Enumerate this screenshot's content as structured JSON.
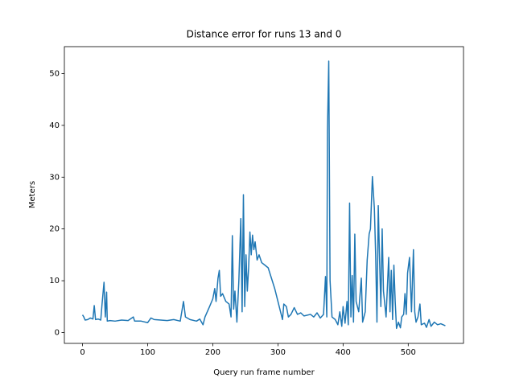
{
  "chart_data": {
    "type": "line",
    "title": "Distance error for runs 13 and 0",
    "x_label": "Query run frame number",
    "y_label": "Meters",
    "xlim": [
      -27.85,
      584.85
    ],
    "ylim": [
      -2.1,
      55.2
    ],
    "xticks": [
      0,
      100,
      200,
      300,
      400,
      500
    ],
    "yticks": [
      0,
      10,
      20,
      30,
      40,
      50
    ],
    "grid": false,
    "x": [
      0,
      2,
      4,
      8,
      12,
      16,
      18,
      20,
      24,
      28,
      30,
      33,
      35,
      37,
      38,
      42,
      50,
      60,
      70,
      78,
      80,
      90,
      100,
      105,
      110,
      120,
      130,
      140,
      150,
      155,
      158,
      165,
      175,
      180,
      185,
      188,
      195,
      200,
      203,
      205,
      208,
      210,
      212,
      215,
      220,
      225,
      228,
      230,
      232,
      234,
      237,
      240,
      243,
      245,
      247,
      249,
      251,
      253,
      255,
      257,
      259,
      261,
      263,
      265,
      268,
      271,
      275,
      280,
      285,
      290,
      295,
      300,
      305,
      307,
      309,
      313,
      316,
      320,
      325,
      330,
      335,
      340,
      350,
      355,
      360,
      365,
      370,
      373,
      375,
      376,
      378,
      380,
      383,
      388,
      392,
      395,
      398,
      400,
      403,
      406,
      408,
      410,
      412,
      414,
      416,
      418,
      420,
      424,
      428,
      430,
      434,
      437,
      440,
      442,
      445,
      448,
      450,
      452,
      454,
      456,
      458,
      460,
      462,
      466,
      470,
      472,
      474,
      476,
      478,
      480,
      482,
      485,
      488,
      490,
      493,
      495,
      497,
      499,
      502,
      505,
      508,
      510,
      512,
      515,
      518,
      520,
      525,
      528,
      532,
      535,
      540,
      545,
      550,
      557
    ],
    "series": [
      {
        "name": "distance-error",
        "color": "#1f77b4",
        "values": [
          3.4,
          3.0,
          2.4,
          2.5,
          2.8,
          2.6,
          5.2,
          2.5,
          2.6,
          2.4,
          5.5,
          9.7,
          3.0,
          7.8,
          2.2,
          2.3,
          2.2,
          2.4,
          2.3,
          3.0,
          2.2,
          2.2,
          1.9,
          2.8,
          2.5,
          2.4,
          2.3,
          2.5,
          2.2,
          6.0,
          3.0,
          2.5,
          2.2,
          2.6,
          1.5,
          3.0,
          5.0,
          6.5,
          8.5,
          6.0,
          10.5,
          12.0,
          7.0,
          7.5,
          6.0,
          5.5,
          3.0,
          18.7,
          4.5,
          8.0,
          2.0,
          10.0,
          22.0,
          4.0,
          26.6,
          5.0,
          15.0,
          8.0,
          12.5,
          19.4,
          15.0,
          18.8,
          16.0,
          17.5,
          14.0,
          15.0,
          13.5,
          13.0,
          12.5,
          10.5,
          8.5,
          6.0,
          3.5,
          2.5,
          5.5,
          5.0,
          3.0,
          3.5,
          4.8,
          3.5,
          3.8,
          3.2,
          3.5,
          3.0,
          3.8,
          2.8,
          3.5,
          10.8,
          3.0,
          39.0,
          52.4,
          10.0,
          3.0,
          2.5,
          1.5,
          4.0,
          1.2,
          5.0,
          1.8,
          6.0,
          1.5,
          25.0,
          3.0,
          11.0,
          2.0,
          19.0,
          6.0,
          4.0,
          10.5,
          2.0,
          4.0,
          14.0,
          19.0,
          20.0,
          30.1,
          24.0,
          15.0,
          2.0,
          24.5,
          14.0,
          5.0,
          20.0,
          8.0,
          3.0,
          14.5,
          4.0,
          12.0,
          2.5,
          13.0,
          6.0,
          0.8,
          2.0,
          0.9,
          3.0,
          3.5,
          7.5,
          3.5,
          11.5,
          14.5,
          4.0,
          16.0,
          4.0,
          2.0,
          3.0,
          5.5,
          1.5,
          1.8,
          1.0,
          2.5,
          1.2,
          2.0,
          1.5,
          1.7,
          1.3
        ]
      }
    ]
  }
}
